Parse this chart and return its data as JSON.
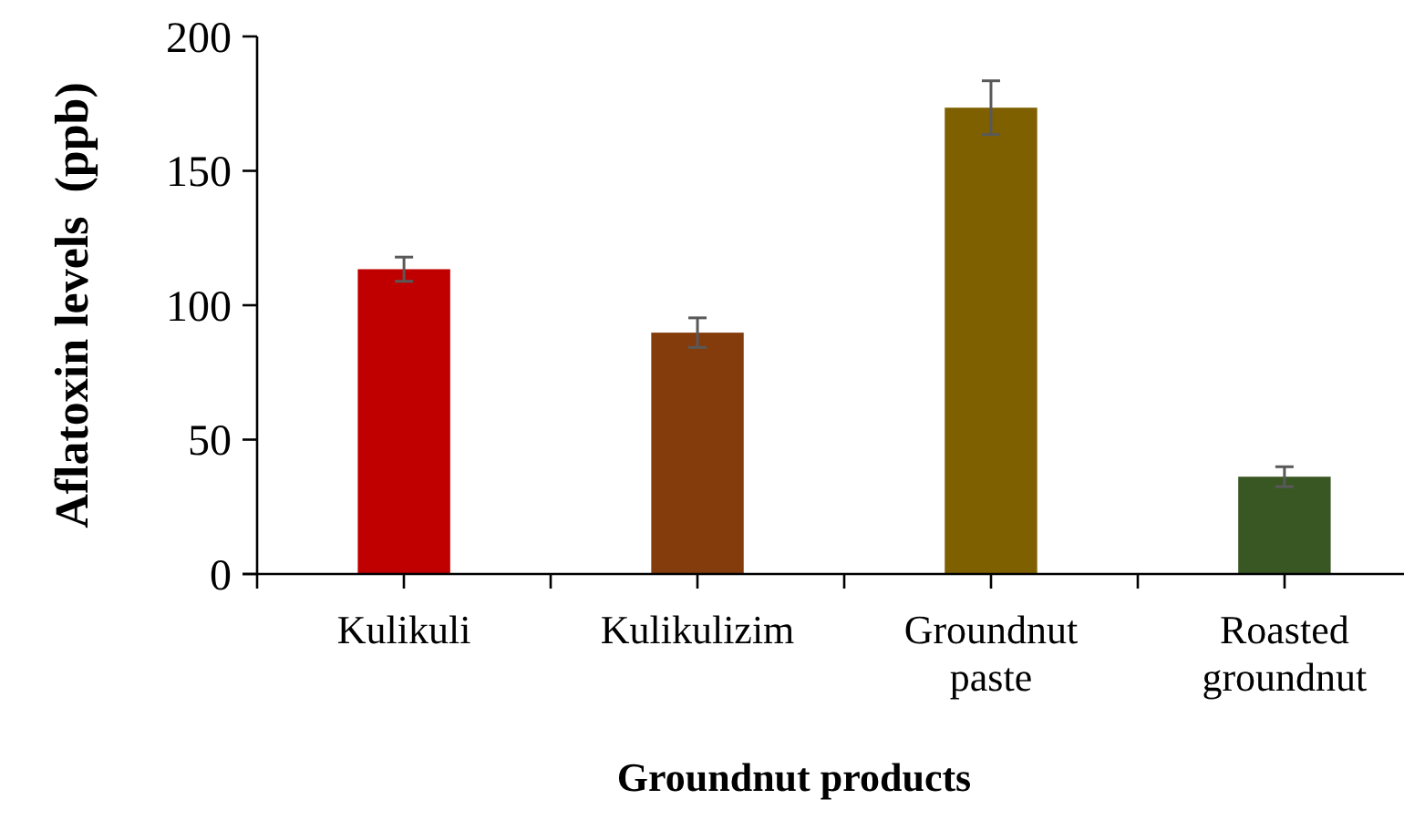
{
  "chart_data": {
    "type": "bar",
    "xlabel": "Groundnut products",
    "ylabel": "Aflatoxin levels  (ppb)",
    "categories": [
      "Kulikuli",
      "Kulikulizim",
      "Groundnut paste",
      "Roasted groundnut"
    ],
    "values": [
      113.4,
      89.8,
      173.5,
      36.2
    ],
    "errors": [
      4.5,
      5.5,
      10,
      3.7
    ],
    "colors": [
      "#c00000",
      "#843c0c",
      "#7f6000",
      "#385723"
    ],
    "ylim": [
      0,
      200
    ],
    "yticks": [
      0,
      50,
      100,
      150,
      200
    ],
    "grid": false
  }
}
